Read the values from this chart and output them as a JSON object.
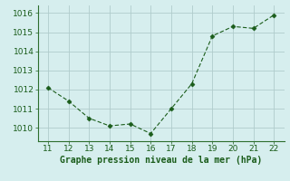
{
  "x": [
    11,
    12,
    13,
    14,
    15,
    16,
    17,
    18,
    19,
    20,
    21,
    22
  ],
  "y": [
    1012.1,
    1011.4,
    1010.5,
    1010.1,
    1010.2,
    1009.7,
    1011.0,
    1012.3,
    1014.8,
    1015.3,
    1015.2,
    1015.9
  ],
  "line_color": "#1a5c1a",
  "marker": "D",
  "marker_size": 2.5,
  "bg_color": "#d6eeee",
  "grid_color": "#b0cccc",
  "xlabel": "Graphe pression niveau de la mer (hPa)",
  "xlabel_color": "#1a5c1a",
  "xlabel_fontsize": 7.0,
  "tick_color": "#1a5c1a",
  "tick_fontsize": 6.5,
  "xlim": [
    10.5,
    22.5
  ],
  "ylim": [
    1009.3,
    1016.4
  ],
  "yticks": [
    1010,
    1011,
    1012,
    1013,
    1014,
    1015,
    1016
  ],
  "xticks": [
    11,
    12,
    13,
    14,
    15,
    16,
    17,
    18,
    19,
    20,
    21,
    22
  ],
  "spine_color": "#2d6e2d"
}
